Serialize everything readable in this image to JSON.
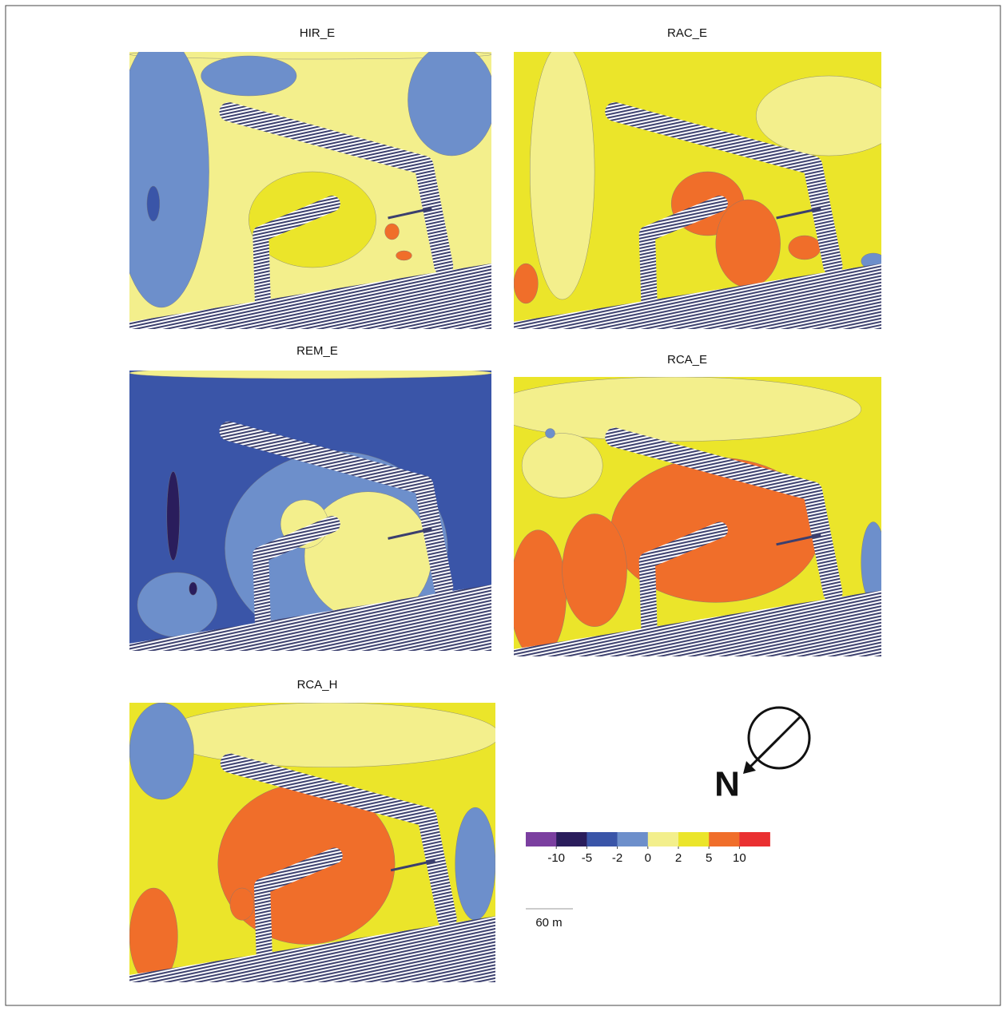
{
  "panels": [
    {
      "title": "HIR_E"
    },
    {
      "title": "RAC_E"
    },
    {
      "title": "REM_E"
    },
    {
      "title": "RCA_E"
    },
    {
      "title": "RCA_H"
    }
  ],
  "legend": {
    "colors": [
      "#7b3fa0",
      "#2a1d5c",
      "#3a55a8",
      "#6d8fcb",
      "#f3ef8c",
      "#ebe52a",
      "#f06e2a",
      "#ea3031"
    ],
    "ticks": [
      -10,
      -5,
      -2,
      0,
      2,
      5,
      10
    ]
  },
  "scale_bar": {
    "label": "60 m"
  },
  "north": {
    "label": "N"
  }
}
